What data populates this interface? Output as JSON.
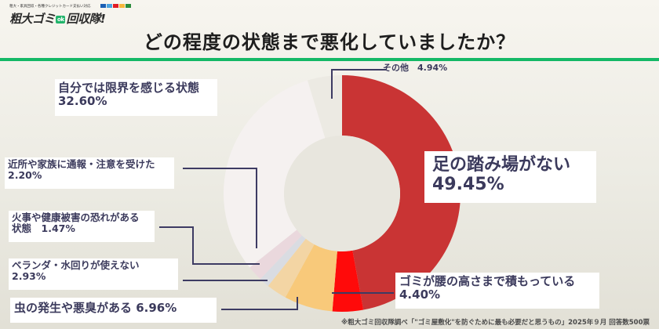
{
  "logo": {
    "tagline": "粗大・家具回収・各種クレジットカード支払い対応",
    "brand_prefix": "粗大ゴミ",
    "badge": "ok",
    "brand_suffix": "回収隊!",
    "card_colors": [
      "#1a5fb4",
      "#4aa3df",
      "#e01b24",
      "#f6b73c",
      "#2a8c3c"
    ]
  },
  "header": {
    "title": "どの程度の状態まで悪化していましたか？",
    "rule_color": "#14b866"
  },
  "chart_data": {
    "type": "pie",
    "variant": "donut",
    "title": "どの程度の状態まで悪化していましたか？",
    "start_angle_deg": 0,
    "direction": "clockwise",
    "categories": [
      "足の踏み場がない",
      "ゴミが腰の高さまで積もっている",
      "虫の発生や悪臭がある",
      "ベランダ・水回りが使えない",
      "火事や健康被害の恐れがある状態",
      "近所や家族に通報・注意を受けた",
      "自分では限界を感じる状態",
      "その他"
    ],
    "values": [
      49.45,
      4.4,
      6.96,
      2.93,
      1.47,
      2.2,
      32.6,
      4.94
    ],
    "unit": "%",
    "colors": [
      "#c93434",
      "#ff0a0a",
      "#f8c97a",
      "#f3d5a4",
      "#d9dce2",
      "#ead8dd",
      "#f5f1f0",
      "#eceae3"
    ],
    "legend": "callout labels"
  },
  "labels": {
    "ashi": {
      "name": "足の踏み場がない",
      "value": "49.45%"
    },
    "koshi": {
      "name": "ゴミが腰の高さまで積もっている",
      "value": "4.40%"
    },
    "mushi": {
      "text": "虫の発生や悪臭がある 6.96%"
    },
    "veranda": {
      "name": "ベランダ・水回りが使えない",
      "value": "2.93%"
    },
    "kaji": {
      "name": "火事や健康被害の恐れがある",
      "value": "状態　1.47%"
    },
    "kinjo": {
      "name": "近所や家族に通報・注意を受けた",
      "value": "2.20%"
    },
    "genkai": {
      "name": "自分では限界を感じる状態",
      "value": "32.60%"
    },
    "sonota": {
      "text": "その他　4.94%"
    }
  },
  "footer": {
    "note": "※粗大ゴミ回収隊調べ「\"ゴミ屋敷化\"を防ぐために最も必要だと思うもの」2025年９月 回答数500票"
  }
}
